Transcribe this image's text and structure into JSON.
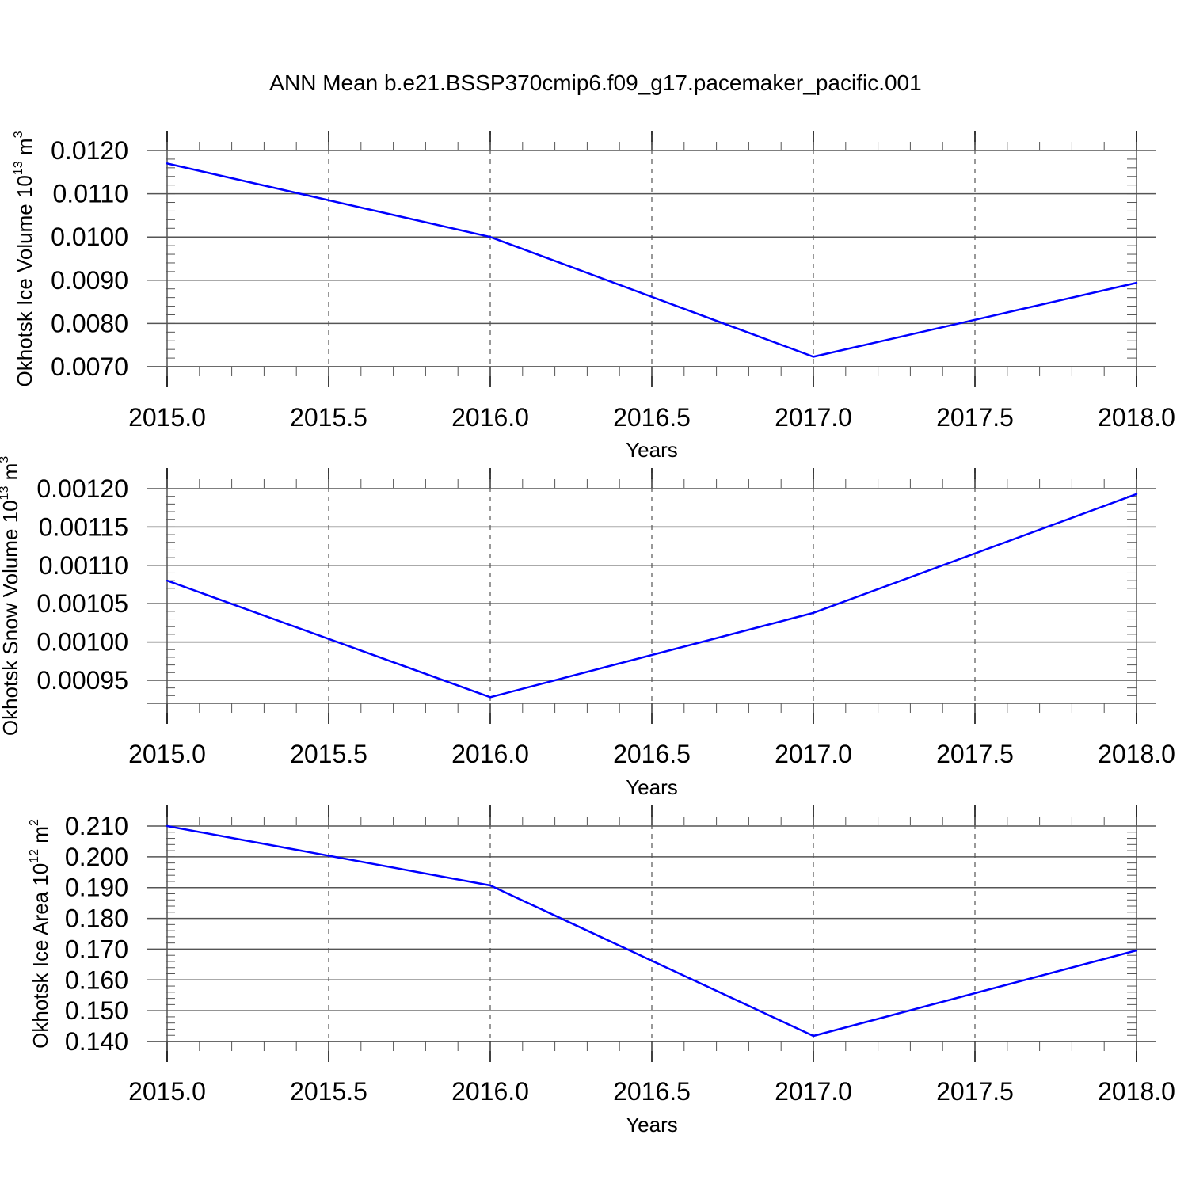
{
  "title": "ANN Mean b.e21.BSSP370cmip6.f09_g17.pacemaker_pacific.001",
  "colors": {
    "series": "#0000ff",
    "grid": "#555555",
    "axis": "#000000"
  },
  "chart_data": [
    {
      "type": "line",
      "xlabel": "Years",
      "ylabel": {
        "text": "Okhotsk Ice Volume 10",
        "exp": "13",
        "unit": " m",
        "unit_exp": "3"
      },
      "x": [
        2015.0,
        2016.0,
        2017.0,
        2018.0
      ],
      "values": [
        0.0117,
        0.01,
        0.00723,
        0.00894
      ],
      "xlim": [
        2015.0,
        2018.0
      ],
      "ylim": [
        0.007,
        0.012
      ],
      "xticks": [
        2015.0,
        2015.5,
        2016.0,
        2016.5,
        2017.0,
        2017.5,
        2018.0
      ],
      "xtick_labels": [
        "2015.0",
        "2015.5",
        "2016.0",
        "2016.5",
        "2017.0",
        "2017.5",
        "2018.0"
      ],
      "yticks": [
        0.007,
        0.008,
        0.009,
        0.01,
        0.011,
        0.012
      ],
      "ytick_labels": [
        "0.0070",
        "0.0080",
        "0.0090",
        "0.0100",
        "0.0110",
        "0.0120"
      ],
      "y_minor_step": 0.0002,
      "grid": "vertical dashed"
    },
    {
      "type": "line",
      "xlabel": "Years",
      "ylabel": {
        "text": "Okhotsk Snow Volume 10",
        "exp": "13",
        "unit": " m",
        "unit_exp": "3"
      },
      "x": [
        2015.0,
        2016.0,
        2017.0,
        2018.0
      ],
      "values": [
        0.00108,
        0.000928,
        0.001038,
        0.001193
      ],
      "xlim": [
        2015.0,
        2018.0
      ],
      "ylim": [
        0.00092,
        0.0012
      ],
      "xticks": [
        2015.0,
        2015.5,
        2016.0,
        2016.5,
        2017.0,
        2017.5,
        2018.0
      ],
      "xtick_labels": [
        "2015.0",
        "2015.5",
        "2016.0",
        "2016.5",
        "2017.0",
        "2017.5",
        "2018.0"
      ],
      "yticks": [
        0.00095,
        0.001,
        0.00105,
        0.0011,
        0.00115,
        0.0012
      ],
      "ytick_labels": [
        "0.00095",
        "0.00100",
        "0.00105",
        "0.00110",
        "0.00115",
        "0.00120"
      ],
      "y_minor_step": 1e-05,
      "grid": "vertical dashed"
    },
    {
      "type": "line",
      "xlabel": "Years",
      "ylabel": {
        "text": "Okhotsk Ice Area 10",
        "exp": "12",
        "unit": " m",
        "unit_exp": "2"
      },
      "x": [
        2015.0,
        2016.0,
        2017.0,
        2018.0
      ],
      "values": [
        0.21,
        0.1907,
        0.1418,
        0.1696
      ],
      "xlim": [
        2015.0,
        2018.0
      ],
      "ylim": [
        0.14,
        0.21
      ],
      "xticks": [
        2015.0,
        2015.5,
        2016.0,
        2016.5,
        2017.0,
        2017.5,
        2018.0
      ],
      "xtick_labels": [
        "2015.0",
        "2015.5",
        "2016.0",
        "2016.5",
        "2017.0",
        "2017.5",
        "2018.0"
      ],
      "yticks": [
        0.14,
        0.15,
        0.16,
        0.17,
        0.18,
        0.19,
        0.2,
        0.21
      ],
      "ytick_labels": [
        "0.140",
        "0.150",
        "0.160",
        "0.170",
        "0.180",
        "0.190",
        "0.200",
        "0.210"
      ],
      "y_minor_step": 0.002,
      "grid": "vertical dashed"
    }
  ]
}
